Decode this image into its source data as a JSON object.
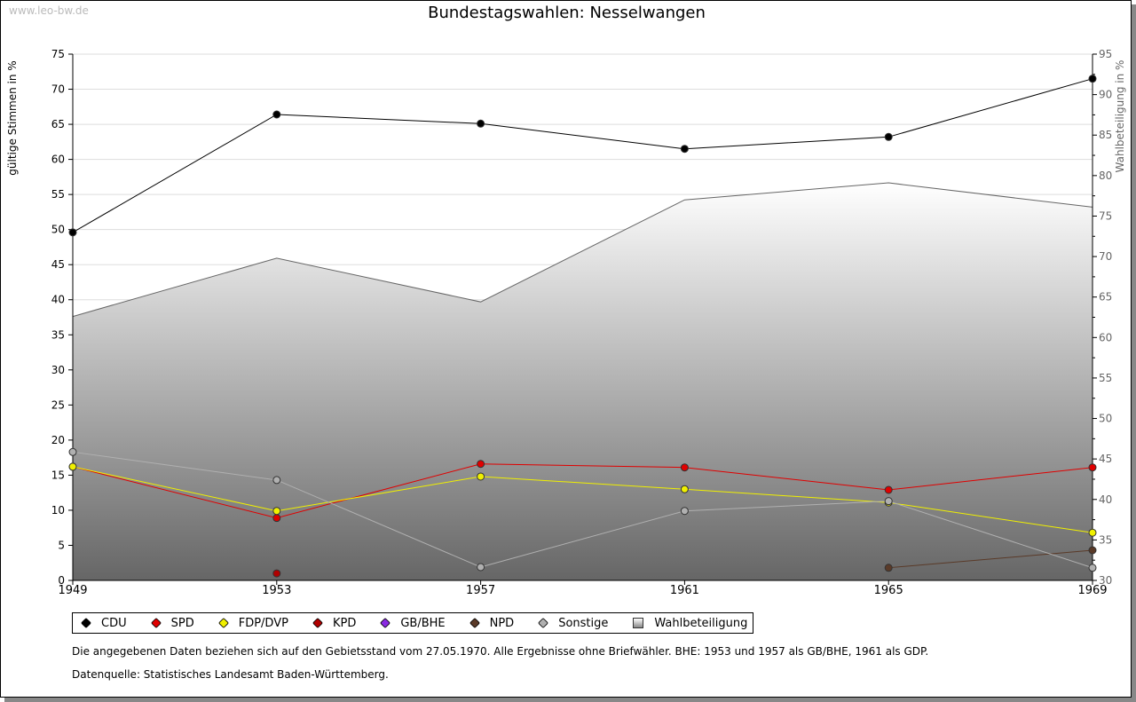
{
  "site": "www.leo-bw.de",
  "chart_data": {
    "type": "line",
    "title": "Bundestagswahlen: Nesselwangen",
    "ylabel": "gültige Stimmen in %",
    "y2label": "Wahlbeteiligung in %",
    "ylim": [
      0,
      75
    ],
    "y2lim": [
      30,
      95
    ],
    "yticks": [
      0,
      5,
      10,
      15,
      20,
      25,
      30,
      35,
      40,
      45,
      50,
      55,
      60,
      65,
      70,
      75
    ],
    "y2ticks": [
      30,
      35,
      40,
      45,
      50,
      55,
      60,
      65,
      70,
      75,
      80,
      85,
      90,
      95
    ],
    "x": [
      "1949",
      "1953",
      "1957",
      "1961",
      "1965",
      "1969"
    ],
    "grid": true,
    "legend_position": "bottom",
    "series": [
      {
        "name": "Wahlbeteiligung",
        "type": "area",
        "axis": "right",
        "color": "#666666",
        "values": [
          62.6,
          69.8,
          64.4,
          77.0,
          79.1,
          76.1
        ]
      },
      {
        "name": "CDU",
        "color": "#000000",
        "values": [
          49.6,
          66.4,
          65.1,
          61.5,
          63.2,
          71.5
        ]
      },
      {
        "name": "SPD",
        "color": "#e00000",
        "values": [
          16.2,
          8.9,
          16.6,
          16.1,
          12.9,
          16.1
        ]
      },
      {
        "name": "FDP/DVP",
        "color": "#f0f000",
        "values": [
          16.2,
          9.9,
          14.8,
          13.0,
          11.1,
          6.8
        ]
      },
      {
        "name": "KPD",
        "color": "#b00000",
        "values": [
          null,
          1.0,
          null,
          null,
          null,
          null
        ]
      },
      {
        "name": "GB/BHE",
        "color": "#8a2be2",
        "values": [
          null,
          null,
          null,
          null,
          null,
          null
        ]
      },
      {
        "name": "NPD",
        "color": "#5a3a28",
        "values": [
          null,
          null,
          null,
          null,
          1.8,
          4.3
        ]
      },
      {
        "name": "Sonstige",
        "color": "#b0b0b0",
        "values": [
          18.3,
          14.3,
          1.9,
          9.9,
          11.3,
          1.8
        ]
      }
    ],
    "legend": [
      "CDU",
      "SPD",
      "FDP/DVP",
      "KPD",
      "GB/BHE",
      "NPD",
      "Sonstige",
      "Wahlbeteiligung"
    ]
  },
  "notes": [
    "Die angegebenen Daten beziehen sich auf den Gebietsstand vom 27.05.1970. Alle Ergebnisse ohne Briefwähler. BHE: 1953 und 1957 als GB/BHE, 1961 als GDP.",
    "Datenquelle: Statistisches Landesamt Baden-Württemberg."
  ]
}
